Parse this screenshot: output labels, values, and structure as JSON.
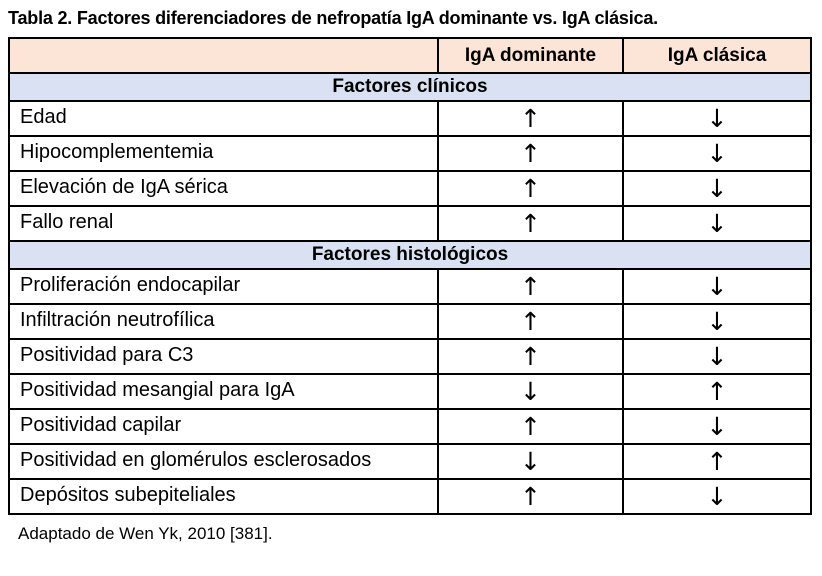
{
  "title": "Tabla 2. Factores diferenciadores de nefropatía IgA dominante vs. IgA clásica.",
  "table": {
    "columns": [
      "",
      "IgA dominante",
      "IgA clásica"
    ],
    "sections": [
      {
        "header": "Factores clínicos",
        "rows": [
          {
            "label": "Edad",
            "dominante": "↑",
            "clasica": "↓"
          },
          {
            "label": "Hipocomplementemia",
            "dominante": "↑",
            "clasica": "↓"
          },
          {
            "label": "Elevación de IgA sérica",
            "dominante": "↑",
            "clasica": "↓"
          },
          {
            "label": "Fallo renal",
            "dominante": "↑",
            "clasica": "↓"
          }
        ]
      },
      {
        "header": "Factores histológicos",
        "rows": [
          {
            "label": "Proliferación endocapilar",
            "dominante": "↑",
            "clasica": "↓"
          },
          {
            "label": "Infiltración neutrofílica",
            "dominante": "↑",
            "clasica": "↓"
          },
          {
            "label": "Positividad para C3",
            "dominante": "↑",
            "clasica": "↓"
          },
          {
            "label": "Positividad mesangial para IgA",
            "dominante": "↓",
            "clasica": "↑"
          },
          {
            "label": "Positividad capilar",
            "dominante": "↑",
            "clasica": "↓"
          },
          {
            "label": "Positividad en glomérulos esclerosados",
            "dominante": "↓",
            "clasica": "↑"
          },
          {
            "label": "Depósitos subepiteliales",
            "dominante": "↑",
            "clasica": "↓"
          }
        ]
      }
    ]
  },
  "footer": "Adaptado de Wen Yk, 2010 [381].",
  "colors": {
    "column_header_bg": "#fce4d6",
    "section_header_bg": "#d9e1f2",
    "border": "#000000",
    "text": "#000000",
    "background": "#ffffff"
  }
}
